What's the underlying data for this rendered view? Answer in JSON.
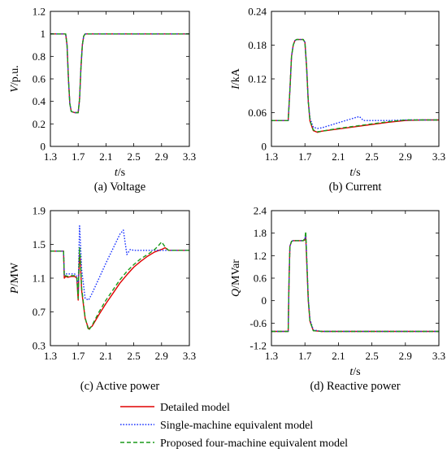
{
  "styles": {
    "detailed": {
      "color": "#e00000",
      "dash": "",
      "width": 1.4
    },
    "single": {
      "color": "#1a33ff",
      "dash": "1.6 1.8",
      "width": 1.4
    },
    "proposed": {
      "color": "#1a9a1a",
      "dash": "5 3",
      "width": 1.4
    }
  },
  "legend": [
    {
      "key": "detailed",
      "label": "Detailed model"
    },
    {
      "key": "single",
      "label": "Single-machine equivalent model"
    },
    {
      "key": "proposed",
      "label": "Proposed four-machine equivalent model"
    }
  ],
  "chart_data": [
    {
      "type": "line",
      "id": "a",
      "caption": "(a) Voltage",
      "ylabel_main": "V",
      "ylabel_unit": "/p.u.",
      "xlabel_main": "t",
      "xlabel_unit": "/s",
      "xlim": [
        1.3,
        3.3
      ],
      "ylim": [
        0,
        1.2
      ],
      "xticks": [
        "1.3",
        "1.7",
        "2.1",
        "2.5",
        "2.9",
        "3.3"
      ],
      "yticks": [
        "0",
        "0.2",
        "0.4",
        "0.6",
        "0.8",
        "1",
        "1.2"
      ],
      "grid": false,
      "series": [
        {
          "key": "detailed",
          "x": [
            1.3,
            1.52,
            1.54,
            1.56,
            1.58,
            1.6,
            1.65,
            1.7,
            1.72,
            1.74,
            1.76,
            1.78,
            1.8,
            3.3
          ],
          "y": [
            1.0,
            1.0,
            0.9,
            0.6,
            0.38,
            0.31,
            0.3,
            0.3,
            0.42,
            0.7,
            0.9,
            0.98,
            1.0,
            1.0
          ]
        },
        {
          "key": "single",
          "x": [
            1.3,
            1.52,
            1.54,
            1.56,
            1.58,
            1.6,
            1.65,
            1.7,
            1.72,
            1.74,
            1.76,
            1.78,
            1.8,
            3.3
          ],
          "y": [
            1.0,
            1.0,
            0.9,
            0.6,
            0.38,
            0.31,
            0.3,
            0.3,
            0.42,
            0.7,
            0.9,
            0.98,
            1.0,
            1.0
          ]
        },
        {
          "key": "proposed",
          "x": [
            1.3,
            1.52,
            1.54,
            1.56,
            1.58,
            1.6,
            1.65,
            1.7,
            1.72,
            1.74,
            1.76,
            1.78,
            1.8,
            3.3
          ],
          "y": [
            1.0,
            1.0,
            0.9,
            0.6,
            0.38,
            0.31,
            0.3,
            0.3,
            0.42,
            0.7,
            0.9,
            0.98,
            1.0,
            1.0
          ]
        }
      ]
    },
    {
      "type": "line",
      "id": "b",
      "caption": "(b) Current",
      "ylabel_main": "I",
      "ylabel_unit": "/kA",
      "xlabel_main": "t",
      "xlabel_unit": "/s",
      "xlim": [
        1.3,
        3.3
      ],
      "ylim": [
        0,
        0.24
      ],
      "xticks": [
        "1.3",
        "1.7",
        "2.1",
        "2.5",
        "2.9",
        "3.3"
      ],
      "yticks": [
        "0",
        "0.06",
        "0.12",
        "0.18",
        "0.24"
      ],
      "grid": false,
      "series": [
        {
          "key": "detailed",
          "x": [
            1.3,
            1.5,
            1.52,
            1.54,
            1.56,
            1.58,
            1.6,
            1.62,
            1.68,
            1.7,
            1.72,
            1.74,
            1.76,
            1.8,
            1.85,
            1.9,
            2.1,
            2.3,
            2.5,
            2.7,
            2.9,
            3.1,
            3.3
          ],
          "y": [
            0.046,
            0.046,
            0.1,
            0.16,
            0.18,
            0.188,
            0.19,
            0.19,
            0.19,
            0.185,
            0.14,
            0.08,
            0.045,
            0.028,
            0.025,
            0.027,
            0.031,
            0.035,
            0.039,
            0.043,
            0.046,
            0.047,
            0.047
          ]
        },
        {
          "key": "single",
          "x": [
            1.3,
            1.5,
            1.52,
            1.54,
            1.56,
            1.58,
            1.6,
            1.62,
            1.68,
            1.7,
            1.72,
            1.74,
            1.76,
            1.8,
            1.85,
            1.9,
            2.1,
            2.3,
            2.35,
            2.4,
            2.5,
            2.7,
            2.9,
            3.1,
            3.3
          ],
          "y": [
            0.046,
            0.046,
            0.1,
            0.16,
            0.18,
            0.188,
            0.19,
            0.19,
            0.19,
            0.185,
            0.14,
            0.08,
            0.05,
            0.034,
            0.032,
            0.033,
            0.042,
            0.051,
            0.053,
            0.046,
            0.046,
            0.046,
            0.047,
            0.047,
            0.047
          ]
        },
        {
          "key": "proposed",
          "x": [
            1.3,
            1.5,
            1.52,
            1.54,
            1.56,
            1.58,
            1.6,
            1.62,
            1.68,
            1.7,
            1.72,
            1.74,
            1.76,
            1.8,
            1.85,
            1.9,
            2.1,
            2.3,
            2.5,
            2.7,
            2.9,
            3.1,
            3.3
          ],
          "y": [
            0.046,
            0.046,
            0.1,
            0.16,
            0.18,
            0.188,
            0.19,
            0.19,
            0.19,
            0.185,
            0.14,
            0.08,
            0.046,
            0.029,
            0.026,
            0.027,
            0.032,
            0.036,
            0.04,
            0.044,
            0.047,
            0.047,
            0.047
          ]
        }
      ]
    },
    {
      "type": "line",
      "id": "c",
      "caption": "(c) Active power",
      "ylabel_main": "P",
      "ylabel_unit": "/MW",
      "xlabel_main": "",
      "xlabel_unit": "",
      "xlim": [
        1.3,
        3.3
      ],
      "ylim": [
        0.3,
        1.9
      ],
      "xticks": [
        "1.3",
        "1.7",
        "2.1",
        "2.5",
        "2.9",
        "3.3"
      ],
      "yticks": [
        "0.3",
        "0.7",
        "1.1",
        "1.5",
        "1.9"
      ],
      "grid": false,
      "series": [
        {
          "key": "detailed",
          "x": [
            1.3,
            1.49,
            1.5,
            1.52,
            1.55,
            1.6,
            1.65,
            1.68,
            1.7,
            1.71,
            1.72,
            1.73,
            1.75,
            1.8,
            1.85,
            1.9,
            2.0,
            2.1,
            2.2,
            2.3,
            2.4,
            2.5,
            2.6,
            2.7,
            2.8,
            2.9,
            2.95,
            3.0,
            3.3
          ],
          "y": [
            1.42,
            1.42,
            1.1,
            1.12,
            1.11,
            1.12,
            1.12,
            1.1,
            0.84,
            1.2,
            1.38,
            1.3,
            0.95,
            0.62,
            0.5,
            0.53,
            0.67,
            0.8,
            0.92,
            1.04,
            1.14,
            1.23,
            1.3,
            1.36,
            1.41,
            1.44,
            1.46,
            1.43,
            1.43
          ]
        },
        {
          "key": "single",
          "x": [
            1.3,
            1.49,
            1.5,
            1.52,
            1.55,
            1.6,
            1.65,
            1.68,
            1.7,
            1.71,
            1.72,
            1.73,
            1.75,
            1.8,
            1.85,
            1.9,
            2.0,
            2.1,
            2.2,
            2.3,
            2.35,
            2.4,
            2.45,
            2.5,
            2.7,
            2.9,
            3.1,
            3.3
          ],
          "y": [
            1.42,
            1.42,
            1.14,
            1.15,
            1.15,
            1.15,
            1.15,
            1.12,
            0.95,
            1.4,
            1.72,
            1.55,
            1.2,
            0.86,
            0.84,
            0.92,
            1.1,
            1.28,
            1.45,
            1.62,
            1.67,
            1.38,
            1.44,
            1.43,
            1.43,
            1.43,
            1.43,
            1.43
          ]
        },
        {
          "key": "proposed",
          "x": [
            1.3,
            1.49,
            1.5,
            1.52,
            1.55,
            1.6,
            1.65,
            1.68,
            1.7,
            1.71,
            1.72,
            1.73,
            1.75,
            1.8,
            1.85,
            1.9,
            2.0,
            2.1,
            2.2,
            2.3,
            2.4,
            2.5,
            2.6,
            2.7,
            2.8,
            2.85,
            2.9,
            2.95,
            3.0,
            3.3
          ],
          "y": [
            1.42,
            1.42,
            1.12,
            1.13,
            1.12,
            1.13,
            1.13,
            1.11,
            0.86,
            1.22,
            1.46,
            1.35,
            0.98,
            0.63,
            0.48,
            0.54,
            0.7,
            0.84,
            0.96,
            1.08,
            1.18,
            1.26,
            1.33,
            1.38,
            1.44,
            1.48,
            1.53,
            1.47,
            1.43,
            1.43
          ]
        }
      ]
    },
    {
      "type": "line",
      "id": "d",
      "caption": "(d) Reactive power",
      "ylabel_main": "Q",
      "ylabel_unit": "/MVar",
      "xlabel_main": "t",
      "xlabel_unit": "/s",
      "xlim": [
        1.3,
        3.3
      ],
      "ylim": [
        -1.2,
        2.4
      ],
      "xticks": [
        "1.3",
        "1.7",
        "2.1",
        "2.5",
        "2.9",
        "3.3"
      ],
      "yticks": [
        "-1.2",
        "-0.6",
        "0",
        "0.6",
        "1.2",
        "1.8",
        "2.4"
      ],
      "grid": false,
      "series": [
        {
          "key": "detailed",
          "x": [
            1.3,
            1.5,
            1.51,
            1.52,
            1.54,
            1.56,
            1.6,
            1.68,
            1.7,
            1.71,
            1.72,
            1.74,
            1.76,
            1.8,
            1.9,
            3.3
          ],
          "y": [
            -0.82,
            -0.82,
            0.5,
            1.45,
            1.58,
            1.6,
            1.6,
            1.6,
            1.62,
            1.7,
            1.1,
            0.0,
            -0.55,
            -0.8,
            -0.82,
            -0.82
          ]
        },
        {
          "key": "single",
          "x": [
            1.3,
            1.5,
            1.51,
            1.52,
            1.54,
            1.56,
            1.6,
            1.68,
            1.7,
            1.71,
            1.72,
            1.74,
            1.76,
            1.8,
            1.9,
            3.3
          ],
          "y": [
            -0.82,
            -0.82,
            0.5,
            1.45,
            1.58,
            1.6,
            1.6,
            1.6,
            1.65,
            1.8,
            1.2,
            0.05,
            -0.5,
            -0.78,
            -0.82,
            -0.82
          ]
        },
        {
          "key": "proposed",
          "x": [
            1.3,
            1.5,
            1.51,
            1.52,
            1.54,
            1.56,
            1.6,
            1.68,
            1.7,
            1.71,
            1.72,
            1.74,
            1.76,
            1.8,
            1.9,
            3.3
          ],
          "y": [
            -0.82,
            -0.82,
            0.5,
            1.45,
            1.58,
            1.6,
            1.6,
            1.6,
            1.66,
            1.85,
            1.2,
            0.05,
            -0.55,
            -0.8,
            -0.82,
            -0.82
          ]
        }
      ]
    }
  ]
}
